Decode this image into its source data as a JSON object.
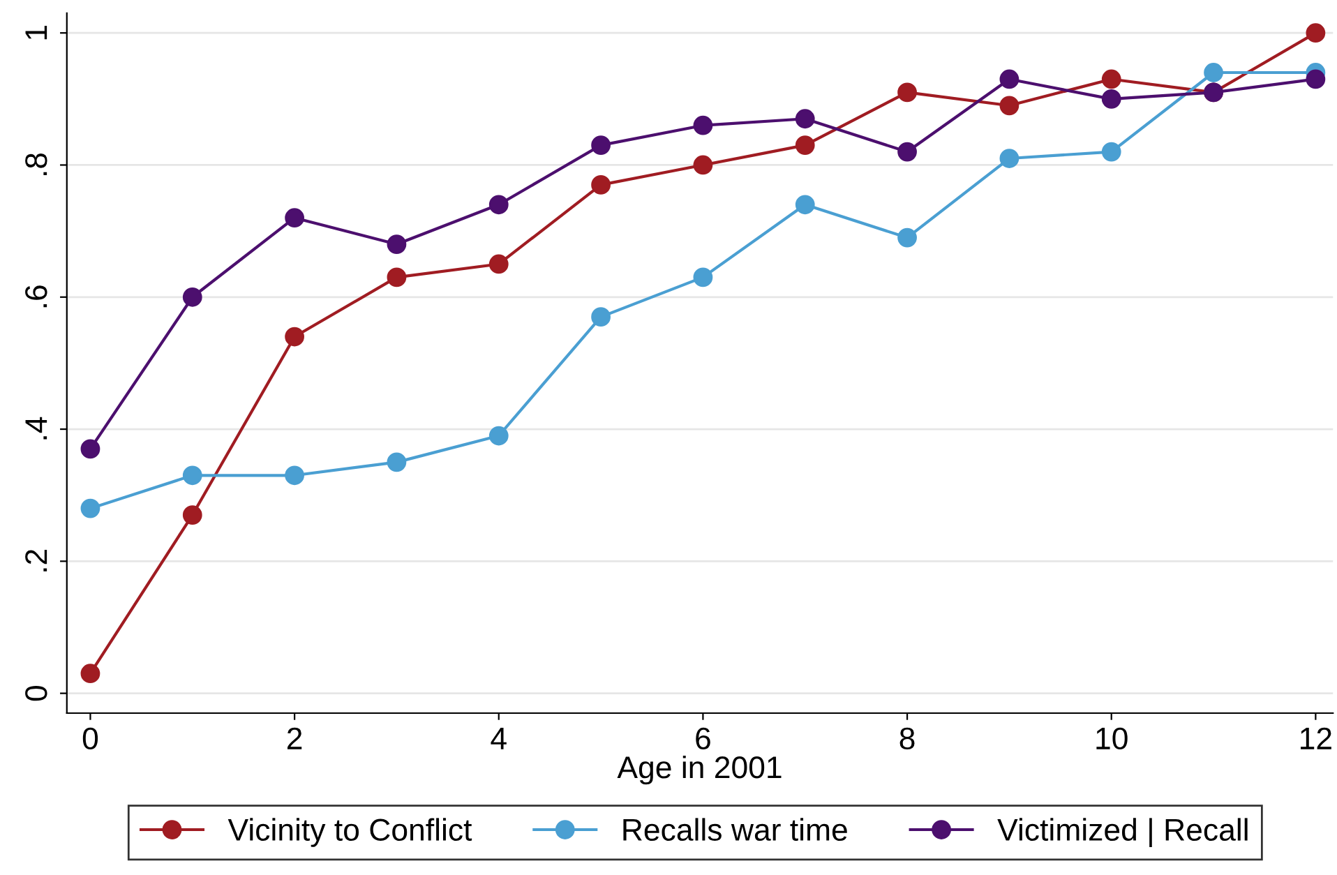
{
  "chart_data": {
    "type": "line",
    "xlabel": "Age in 2001",
    "x": [
      0,
      1,
      2,
      3,
      4,
      5,
      6,
      7,
      8,
      9,
      10,
      11,
      12
    ],
    "series": [
      {
        "name": "Vicinity to Conflict",
        "color": "#a01c22",
        "values": [
          0.03,
          0.27,
          0.54,
          0.63,
          0.65,
          0.77,
          0.8,
          0.83,
          0.91,
          0.89,
          0.93,
          0.91,
          1.0
        ]
      },
      {
        "name": "Recalls war time",
        "color": "#4a9fd2",
        "values": [
          0.28,
          0.33,
          0.33,
          0.35,
          0.39,
          0.57,
          0.63,
          0.74,
          0.69,
          0.81,
          0.82,
          0.94,
          0.94
        ]
      },
      {
        "name": "Victimized | Recall",
        "color": "#4c0f6e",
        "values": [
          0.37,
          0.6,
          0.72,
          0.68,
          0.74,
          0.83,
          0.86,
          0.87,
          0.82,
          0.93,
          0.9,
          0.91,
          0.93
        ]
      }
    ],
    "xlim": [
      -0.23,
      12.17
    ],
    "xticks": [
      0,
      2,
      4,
      6,
      8,
      10,
      12
    ],
    "ylim": [
      -0.03,
      1.03
    ],
    "yticks": [
      0,
      {
        "value": 0.2,
        "label": ".2"
      },
      {
        "value": 0.4,
        "label": ".4"
      },
      {
        "value": 0.6,
        "label": ".6"
      },
      {
        "value": 0.8,
        "label": ".8"
      },
      1
    ],
    "grid": "y",
    "legend": "bottom",
    "marker": "circle",
    "line_style": "solid"
  }
}
